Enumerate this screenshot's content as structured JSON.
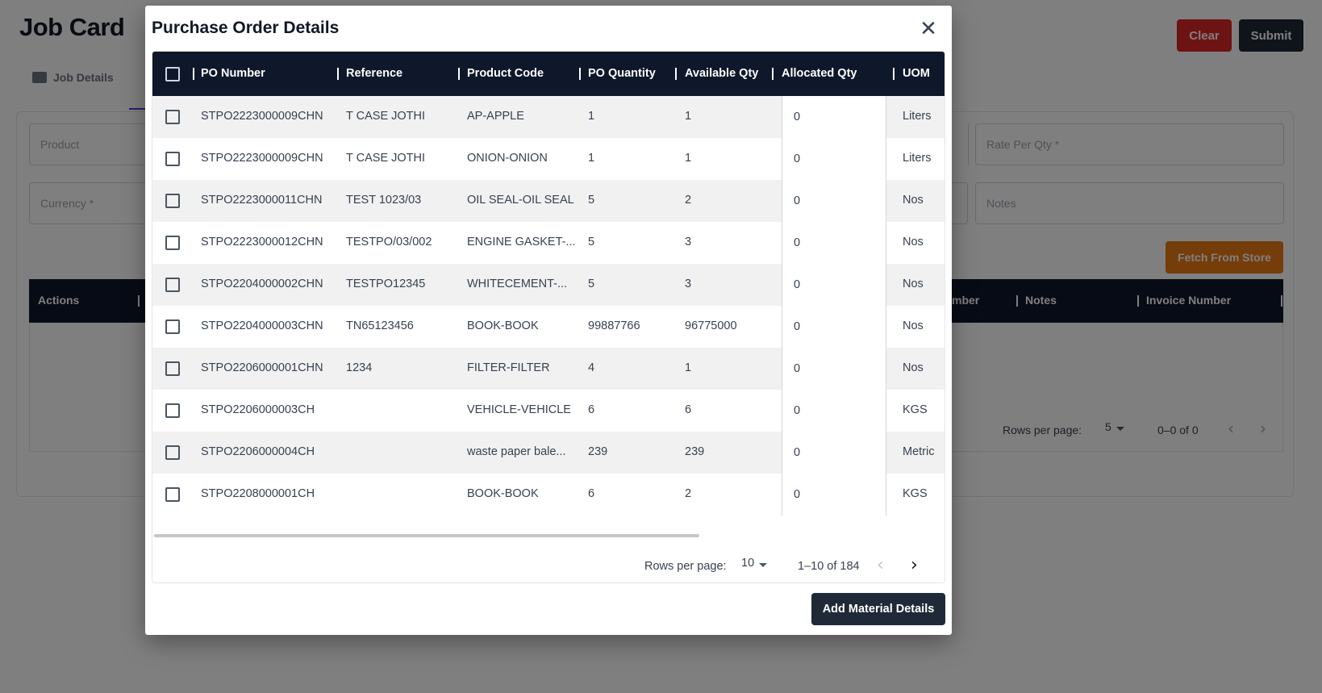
{
  "page": {
    "title": "Job Card",
    "clear_label": "Clear",
    "submit_label": "Submit",
    "tab_job_details": "Job Details",
    "product_placeholder": "Product",
    "currency_placeholder": "Currency *",
    "rate_placeholder": "Rate Per Qty *",
    "notes_placeholder": "Notes",
    "fetch_label": "Fetch From Store",
    "table_headers": {
      "actions": "Actions",
      "number": "mber",
      "notes": "Notes",
      "invoice": "Invoice Number"
    },
    "rows_per_page_label": "Rows per page:",
    "rows_per_page_value": "5",
    "range": "0–0 of 0"
  },
  "modal": {
    "title": "Purchase Order Details",
    "columns": [
      "PO Number",
      "Reference",
      "Product Code",
      "PO Quantity",
      "Available Qty",
      "Allocated Qty",
      "UOM"
    ],
    "rows": [
      {
        "po_number": "STPO2223000009CHN",
        "reference": "T CASE JOTHI",
        "product_code": "AP-APPLE",
        "po_qty": "1",
        "available_qty": "1",
        "allocated_qty": "0",
        "uom": "Liters"
      },
      {
        "po_number": "STPO2223000009CHN",
        "reference": "T CASE JOTHI",
        "product_code": "ONION-ONION",
        "po_qty": "1",
        "available_qty": "1",
        "allocated_qty": "0",
        "uom": "Liters"
      },
      {
        "po_number": "STPO2223000011CHN",
        "reference": "TEST 1023/03",
        "product_code": "OIL SEAL-OIL SEAL",
        "po_qty": "5",
        "available_qty": "2",
        "allocated_qty": "0",
        "uom": "Nos"
      },
      {
        "po_number": "STPO2223000012CHN",
        "reference": "TESTPO/03/002",
        "product_code": "ENGINE GASKET-...",
        "po_qty": "5",
        "available_qty": "3",
        "allocated_qty": "0",
        "uom": "Nos"
      },
      {
        "po_number": "STPO2204000002CHN",
        "reference": "TESTPO12345",
        "product_code": "WHITECEMENT-...",
        "po_qty": "5",
        "available_qty": "3",
        "allocated_qty": "0",
        "uom": "Nos"
      },
      {
        "po_number": "STPO2204000003CHN",
        "reference": "TN65123456",
        "product_code": "BOOK-BOOK",
        "po_qty": "99887766",
        "available_qty": "96775000",
        "allocated_qty": "0",
        "uom": "Nos"
      },
      {
        "po_number": "STPO2206000001CHN",
        "reference": "1234",
        "product_code": "FILTER-FILTER",
        "po_qty": "4",
        "available_qty": "1",
        "allocated_qty": "0",
        "uom": "Nos"
      },
      {
        "po_number": "STPO2206000003CH",
        "reference": "",
        "product_code": "VEHICLE-VEHICLE",
        "po_qty": "6",
        "available_qty": "6",
        "allocated_qty": "0",
        "uom": "KGS"
      },
      {
        "po_number": "STPO2206000004CH",
        "reference": "",
        "product_code": "waste paper bale...",
        "po_qty": "239",
        "available_qty": "239",
        "allocated_qty": "0",
        "uom": "Metric"
      },
      {
        "po_number": "STPO2208000001CH",
        "reference": "",
        "product_code": "BOOK-BOOK",
        "po_qty": "6",
        "available_qty": "2",
        "allocated_qty": "0",
        "uom": "KGS"
      }
    ],
    "rows_per_page_label": "Rows per page:",
    "rows_per_page_value": "10",
    "range": "1–10 of 184",
    "add_button": "Add Material Details"
  }
}
